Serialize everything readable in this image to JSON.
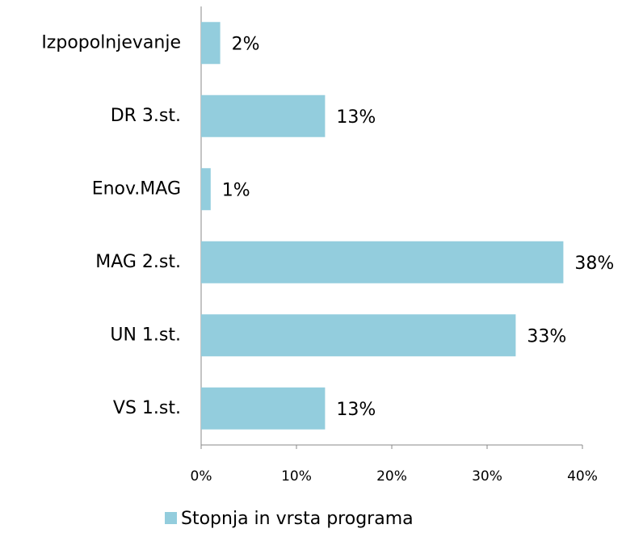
{
  "chart_data": {
    "type": "bar",
    "orientation": "horizontal",
    "categories": [
      "Izpopolnjevanje",
      "DR 3.st.",
      "Enov.MAG",
      "MAG 2.st.",
      "UN 1.st.",
      "VS 1.st."
    ],
    "series": [
      {
        "name": "Stopnja in vrsta programa",
        "color": "#93cddd",
        "values": [
          2,
          13,
          1,
          38,
          33,
          13
        ],
        "value_labels": [
          "2%",
          "13%",
          "1%",
          "38%",
          "33%",
          "13%"
        ]
      }
    ],
    "xlim": [
      0,
      40
    ],
    "xticks": [
      {
        "value": 0,
        "label": "0%"
      },
      {
        "value": 10,
        "label": "10%"
      },
      {
        "value": 20,
        "label": "20%"
      },
      {
        "value": 30,
        "label": "30%"
      },
      {
        "value": 40,
        "label": "40%"
      }
    ],
    "legend": "bottom"
  }
}
